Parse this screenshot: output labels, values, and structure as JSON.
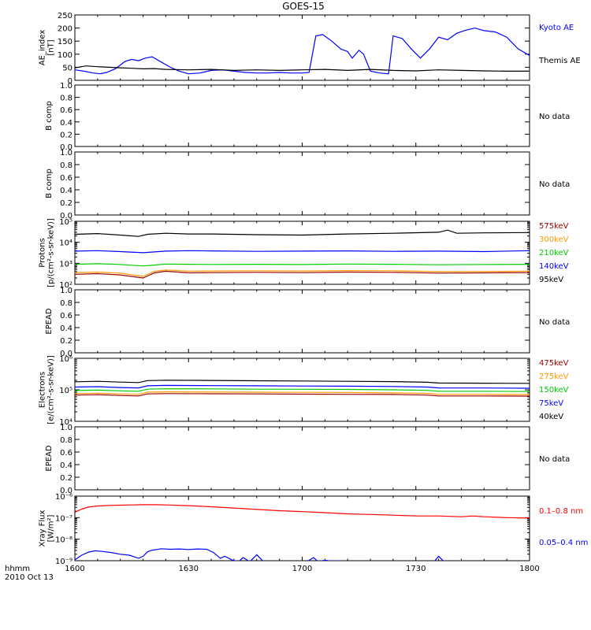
{
  "chart_data": {
    "type": "line",
    "title": "GOES-15",
    "x_axis": {
      "range": [
        "1600",
        "1800"
      ],
      "ticks": [
        "1600",
        "1630",
        "1700",
        "1730",
        "1800"
      ],
      "label_line1": "hhmm",
      "label_line2": "2010 Oct 13"
    },
    "panels": [
      {
        "id": "ae",
        "ylabel": [
          "AE_index",
          "[nT]"
        ],
        "ylim": [
          0,
          250
        ],
        "scale": "linear",
        "yticks": [
          "0",
          "50",
          "100",
          "150",
          "200",
          "250"
        ],
        "series": [
          {
            "name": "Kyoto AE",
            "color": "#0000ff",
            "x": [
              0,
              4,
              8,
              11,
              14,
              18,
              22,
              25,
              28,
              31,
              34,
              38,
              42,
              46,
              50,
              55,
              60,
              65,
              70,
              75,
              80,
              85,
              90,
              95,
              100,
              103,
              106,
              109,
              113,
              117,
              120,
              122,
              125,
              127,
              130,
              134,
              138,
              140,
              144,
              148,
              152,
              156,
              160,
              164,
              168,
              172,
              176,
              180,
              185,
              190,
              195,
              200
            ],
            "y": [
              40,
              35,
              28,
              25,
              30,
              45,
              72,
              80,
              75,
              85,
              90,
              70,
              50,
              35,
              25,
              28,
              38,
              40,
              35,
              30,
              28,
              28,
              30,
              28,
              28,
              30,
              170,
              175,
              150,
              120,
              110,
              85,
              115,
              100,
              35,
              28,
              25,
              170,
              160,
              120,
              85,
              120,
              165,
              155,
              180,
              192,
              200,
              190,
              185,
              165,
              120,
              95
            ]
          },
          {
            "name": "Themis AE",
            "color": "#000000",
            "x": [
              0,
              5,
              10,
              15,
              20,
              25,
              30,
              35,
              40,
              50,
              60,
              70,
              80,
              90,
              100,
              110,
              120,
              130,
              140,
              150,
              160,
              170,
              180,
              190,
              200
            ],
            "y": [
              48,
              55,
              52,
              50,
              48,
              46,
              44,
              45,
              42,
              40,
              42,
              38,
              40,
              38,
              40,
              42,
              38,
              42,
              38,
              36,
              40,
              38,
              36,
              35,
              35
            ]
          }
        ],
        "no_data_text": ""
      },
      {
        "id": "b1",
        "ylabel": [
          "B comp"
        ],
        "ylim": [
          0,
          1
        ],
        "scale": "linear",
        "yticks": [
          "0.0",
          "0.2",
          "0.4",
          "0.6",
          "0.8",
          "1.0"
        ],
        "series": [],
        "no_data_text": "No data"
      },
      {
        "id": "b2",
        "ylabel": [
          "B comp"
        ],
        "ylim": [
          0,
          1
        ],
        "scale": "linear",
        "yticks": [
          "0.0",
          "0.2",
          "0.4",
          "0.6",
          "0.8",
          "1.0"
        ],
        "series": [],
        "no_data_text": "No data"
      },
      {
        "id": "protons",
        "ylabel": [
          "Protons",
          "[p/(cm²-s-sr-keV)]"
        ],
        "ylim": [
          100,
          100000
        ],
        "scale": "log",
        "yticks": [
          "10²",
          "10³",
          "10⁴",
          "10⁵"
        ],
        "series": [
          {
            "name": "575keV",
            "color": "#990000",
            "x": [
              0,
              10,
              20,
              30,
              35,
              40,
              50,
              60,
              80,
              100,
              120,
              140,
              160,
              180,
              200
            ],
            "y": [
              300,
              320,
              280,
              200,
              350,
              420,
              350,
              360,
              370,
              360,
              380,
              370,
              340,
              350,
              360
            ]
          },
          {
            "name": "300keV",
            "color": "#ff9900",
            "x": [
              0,
              10,
              20,
              30,
              35,
              40,
              50,
              60,
              80,
              100,
              120,
              140,
              160,
              180,
              200
            ],
            "y": [
              360,
              380,
              340,
              240,
              420,
              480,
              420,
              430,
              440,
              430,
              450,
              440,
              400,
              410,
              420
            ]
          },
          {
            "name": "210keV",
            "color": "#00cc00",
            "x": [
              0,
              10,
              20,
              30,
              35,
              40,
              50,
              60,
              80,
              100,
              120,
              140,
              160,
              180,
              200
            ],
            "y": [
              900,
              950,
              880,
              750,
              820,
              920,
              900,
              880,
              900,
              870,
              920,
              900,
              850,
              880,
              900
            ]
          },
          {
            "name": "140keV",
            "color": "#0000ff",
            "x": [
              0,
              10,
              20,
              30,
              40,
              50,
              60,
              80,
              100,
              120,
              140,
              160,
              180,
              200
            ],
            "y": [
              3800,
              4000,
              3600,
              3200,
              3800,
              4000,
              3900,
              3700,
              3800,
              3900,
              3700,
              3800,
              3600,
              4000
            ]
          },
          {
            "name": "95keV",
            "color": "#000000",
            "x": [
              0,
              10,
              20,
              28,
              32,
              40,
              50,
              60,
              80,
              100,
              120,
              140,
              160,
              164,
              168,
              180,
              200
            ],
            "y": [
              24000,
              26000,
              22000,
              19000,
              24000,
              27000,
              25000,
              25000,
              23000,
              22000,
              25000,
              27000,
              30000,
              38000,
              27000,
              28000,
              29000
            ]
          }
        ],
        "no_data_text": ""
      },
      {
        "id": "epead1",
        "ylabel": [
          "EPEAD"
        ],
        "ylim": [
          0,
          1
        ],
        "scale": "linear",
        "yticks": [
          "0.0",
          "0.2",
          "0.4",
          "0.6",
          "0.8",
          "1.0"
        ],
        "series": [],
        "no_data_text": "No data"
      },
      {
        "id": "electrons",
        "ylabel": [
          "Electrons",
          "[e/(cm²-s-sr-keV)]"
        ],
        "ylim": [
          10000,
          1000000
        ],
        "scale": "log",
        "yticks": [
          "10⁴",
          "10⁵",
          "10⁶"
        ],
        "series": [
          {
            "name": "475keV",
            "color": "#990000",
            "x": [
              0,
              10,
              20,
              28,
              32,
              40,
              60,
              80,
              100,
              120,
              140,
              155,
              160,
              180,
              200
            ],
            "y": [
              68000,
              70000,
              66000,
              64000,
              74000,
              76000,
              75000,
              74000,
              73000,
              72000,
              71000,
              68000,
              64000,
              64000,
              63000
            ]
          },
          {
            "name": "275keV",
            "color": "#ff9900",
            "x": [
              0,
              10,
              20,
              28,
              32,
              40,
              60,
              80,
              100,
              120,
              140,
              155,
              160,
              180,
              200
            ],
            "y": [
              76000,
              78000,
              74000,
              72000,
              84000,
              86000,
              85000,
              84000,
              83000,
              82000,
              80000,
              77000,
              72000,
              72000,
              71000
            ]
          },
          {
            "name": "150keV",
            "color": "#00cc00",
            "x": [
              0,
              10,
              20,
              28,
              32,
              40,
              60,
              80,
              100,
              120,
              140,
              155,
              160,
              180,
              200
            ],
            "y": [
              95000,
              98000,
              93000,
              90000,
              105000,
              108000,
              107000,
              105000,
              104000,
              103000,
              100000,
              96000,
              90000,
              90000,
              88000
            ]
          },
          {
            "name": "75keV",
            "color": "#0000ff",
            "x": [
              0,
              10,
              20,
              28,
              32,
              40,
              60,
              80,
              100,
              120,
              140,
              155,
              160,
              180,
              200
            ],
            "y": [
              122000,
              126000,
              118000,
              115000,
              134000,
              138000,
              136000,
              134000,
              132000,
              130000,
              127000,
              122000,
              115000,
              114000,
              112000
            ]
          },
          {
            "name": "40keV",
            "color": "#000000",
            "x": [
              0,
              10,
              20,
              28,
              32,
              40,
              60,
              80,
              100,
              120,
              140,
              155,
              160,
              180,
              200
            ],
            "y": [
              180000,
              186000,
              176000,
              170000,
              196000,
              202000,
              198000,
              194000,
              190000,
              186000,
              182000,
              174000,
              164000,
              162000,
              160000
            ]
          }
        ],
        "no_data_text": ""
      },
      {
        "id": "epead2",
        "ylabel": [
          "EPEAD"
        ],
        "ylim": [
          0,
          1
        ],
        "scale": "linear",
        "yticks": [
          "0.0",
          "0.2",
          "0.4",
          "0.6",
          "0.8",
          "1.0"
        ],
        "series": [],
        "no_data_text": "No data"
      },
      {
        "id": "xray",
        "ylabel": [
          "Xray Flux",
          "[W/m²]"
        ],
        "ylim": [
          1e-09,
          1e-06
        ],
        "scale": "log",
        "yticks": [
          "10⁻⁹",
          "10⁻⁸",
          "10⁻⁷",
          "10⁻⁶"
        ],
        "series": [
          {
            "name": "0.1–0.8 nm",
            "color": "#ff0000",
            "x": [
              0,
              3,
              6,
              10,
              15,
              20,
              25,
              30,
              35,
              40,
              50,
              60,
              70,
              80,
              90,
              100,
              110,
              120,
              130,
              140,
              150,
              160,
              170,
              175,
              180,
              190,
              200
            ],
            "y": [
              1.8e-07,
              2.5e-07,
              3.1e-07,
              3.5e-07,
              3.7e-07,
              3.8e-07,
              3.9e-07,
              4e-07,
              4e-07,
              3.9e-07,
              3.6e-07,
              3.2e-07,
              2.8e-07,
              2.4e-07,
              2.1e-07,
              1.9e-07,
              1.7e-07,
              1.5e-07,
              1.4e-07,
              1.3e-07,
              1.2e-07,
              1.2e-07,
              1.1e-07,
              1.2e-07,
              1.1e-07,
              1e-07,
              9.5e-08
            ]
          },
          {
            "name": "0.05–0.4 nm",
            "color": "#0000ff",
            "x": [
              0,
              3,
              6,
              9,
              12,
              16,
              20,
              24,
              28,
              30,
              32,
              34,
              36,
              38,
              42,
              46,
              50,
              54,
              58,
              61,
              64,
              66,
              69,
              72,
              74,
              77,
              80,
              83,
              86,
              90,
              94,
              98,
              102,
              105,
              107,
              110,
              113,
              116,
              120,
              124,
              128,
              132,
              136,
              140,
              144,
              148,
              152,
              156,
              158,
              160,
              162,
              164,
              166,
              170,
              175,
              180,
              185,
              190,
              195,
              200
            ],
            "y": [
              1.1e-09,
              1.8e-09,
              2.5e-09,
              2.9e-09,
              2.7e-09,
              2.4e-09,
              2e-09,
              1.8e-09,
              1.3e-09,
              1.6e-09,
              2.6e-09,
              3.1e-09,
              3.3e-09,
              3.6e-09,
              3.4e-09,
              3.5e-09,
              3.3e-09,
              3.5e-09,
              3.4e-09,
              2.4e-09,
              1.3e-09,
              1.6e-09,
              1.1e-09,
              9e-10,
              1.4e-09,
              9e-10,
              1.9e-09,
              9e-10,
              9e-10,
              9e-10,
              9e-10,
              9e-10,
              9e-10,
              1.4e-09,
              9e-10,
              1.05e-09,
              9.5e-10,
              1e-09,
              9e-10,
              9e-10,
              9e-10,
              9e-10,
              9e-10,
              9e-10,
              9e-10,
              9e-10,
              9e-10,
              9e-10,
              9e-10,
              1.6e-09,
              1e-09,
              9e-10,
              9e-10,
              9e-10,
              9e-10,
              9e-10,
              9e-10,
              9e-10,
              9e-10,
              9e-10
            ]
          }
        ],
        "no_data_text": ""
      }
    ]
  }
}
